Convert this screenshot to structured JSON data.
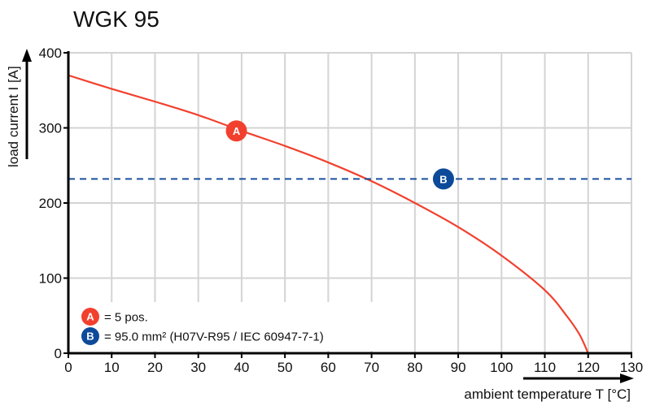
{
  "chart_data": {
    "type": "line",
    "title": "WGK 95",
    "xlabel": "ambient temperature T [°C]",
    "ylabel": "load current I [A]",
    "xlim": [
      0,
      130
    ],
    "ylim": [
      0,
      400
    ],
    "x_ticks": [
      0,
      10,
      20,
      30,
      40,
      50,
      60,
      70,
      80,
      90,
      100,
      110,
      120,
      130
    ],
    "y_ticks": [
      0,
      100,
      200,
      300,
      400
    ],
    "grid": true,
    "series": [
      {
        "name": "A = 5 pos.",
        "style": "solid",
        "color": "#f2402e",
        "x": [
          0,
          10,
          20,
          30,
          40,
          50,
          60,
          70,
          80,
          90,
          100,
          110,
          115,
          118,
          120
        ],
        "values": [
          370,
          352,
          335,
          317,
          296,
          276,
          254,
          229,
          200,
          168,
          130,
          84,
          50,
          25,
          0
        ]
      },
      {
        "name": "B = 95.0 mm² (H07V-R95 / IEC 60947-7-1)",
        "style": "dashed",
        "color": "#1a4f9c",
        "x": [
          0,
          130
        ],
        "values": [
          232,
          232
        ]
      }
    ],
    "markers": [
      {
        "label": "A",
        "x": 38.8,
        "y": 296,
        "color": "#f2402e"
      },
      {
        "label": "B",
        "x": 86.6,
        "y": 232,
        "color": "#0d4a9a"
      }
    ],
    "legend": [
      {
        "marker": "A",
        "text": "= 5 pos.",
        "color": "#f2402e"
      },
      {
        "marker": "B",
        "text": "= 95.0 mm² (H07V-R95 / IEC 60947-7-1)",
        "color": "#0d4a9a"
      }
    ],
    "legend_position": "bottom-left"
  }
}
